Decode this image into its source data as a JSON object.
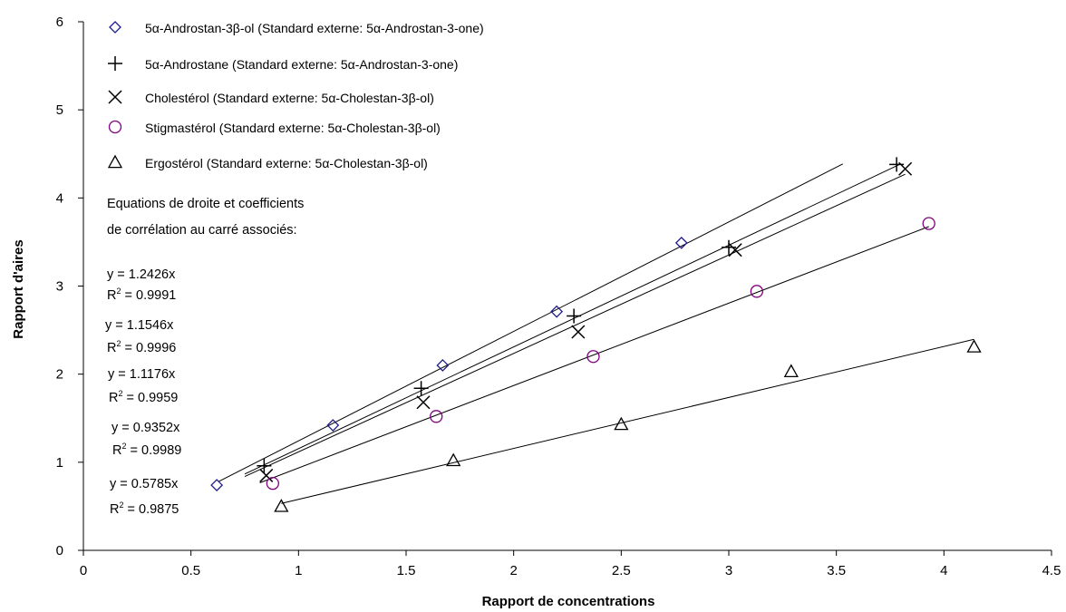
{
  "chart_data": {
    "type": "scatter",
    "xlabel": "Rapport de concentrations",
    "ylabel": "Rapport d'aires",
    "xlim": [
      0,
      4.5
    ],
    "ylim": [
      0,
      6
    ],
    "x_ticks": [
      "0",
      "0.5",
      "1",
      "1.5",
      "2",
      "2.5",
      "3",
      "3.5",
      "4",
      "4.5"
    ],
    "y_ticks": [
      "0",
      "1",
      "2",
      "3",
      "4",
      "5",
      "6"
    ],
    "grid": false,
    "legend_position": "top-left",
    "series": [
      {
        "name": "5α-Androstan-3β-ol (Standard externe: 5α-Androstan-3-one)",
        "marker": "diamond",
        "color": "#1c1c8c",
        "x": [
          0.62,
          1.16,
          1.67,
          2.2,
          2.78
        ],
        "y": [
          0.74,
          1.42,
          2.1,
          2.71,
          3.49
        ],
        "slope": 1.2426,
        "fit_range": [
          0.63,
          3.53
        ],
        "equation": "y = 1.2426x",
        "r2": "= 0.9991"
      },
      {
        "name": "5α-Androstane (Standard externe: 5α-Androstan-3-one)",
        "marker": "plus",
        "color": "#000000",
        "x": [
          0.84,
          1.57,
          2.28,
          3.0,
          3.78
        ],
        "y": [
          0.96,
          1.84,
          2.66,
          3.44,
          4.38
        ],
        "slope": 1.1546,
        "fit_range": [
          0.75,
          3.8
        ],
        "equation": "y = 1.1546x",
        "r2": "= 0.9996"
      },
      {
        "name": "Cholestérol (Standard externe: 5α-Cholestan-3β-ol)",
        "marker": "cross",
        "color": "#000000",
        "x": [
          0.85,
          1.58,
          2.3,
          3.03,
          3.82
        ],
        "y": [
          0.85,
          1.68,
          2.48,
          3.41,
          4.33
        ],
        "slope": 1.1176,
        "fit_range": [
          0.75,
          3.82
        ],
        "equation": "y = 1.1176x",
        "r2": "= 0.9959"
      },
      {
        "name": "Stigmastérol (Standard externe: 5α-Cholestan-3β-ol)",
        "marker": "circle",
        "color": "#800080",
        "x": [
          0.88,
          1.64,
          2.37,
          3.13,
          3.93
        ],
        "y": [
          0.76,
          1.52,
          2.2,
          2.94,
          3.71
        ],
        "slope": 0.9352,
        "fit_range": [
          0.82,
          3.93
        ],
        "equation": "y = 0.9352x",
        "r2": "= 0.9989"
      },
      {
        "name": "Ergostérol (Standard externe: 5α-Cholestan-3β-ol)",
        "marker": "triangle",
        "color": "#000000",
        "x": [
          0.92,
          1.72,
          2.5,
          3.29,
          4.14
        ],
        "y": [
          0.5,
          1.02,
          1.43,
          2.03,
          2.31
        ],
        "slope": 0.5785,
        "fit_range": [
          0.92,
          4.14
        ],
        "equation": "y = 0.5785x",
        "r2": "= 0.9875"
      }
    ],
    "annotation_header": [
      "Equations de droite et coefficients",
      "de corrélation au carré associés:"
    ]
  }
}
